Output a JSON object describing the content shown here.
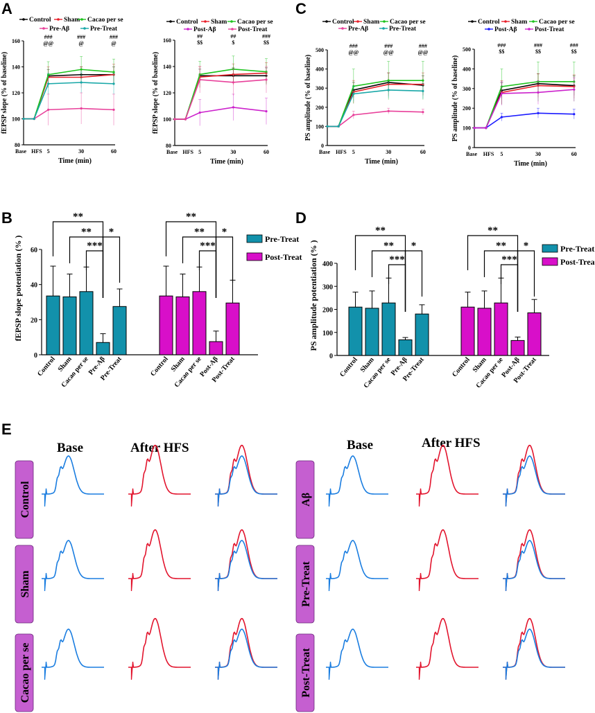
{
  "panels": {
    "a": "A",
    "b": "B",
    "c": "C",
    "d": "D",
    "e": "E"
  },
  "colors": {
    "control": "#000000",
    "sham": "#e8202a",
    "cacao": "#1ec31e",
    "abeta_pre": "#e8409a",
    "treat_pre": "#17a7a7",
    "abeta_post": "#1a1aff",
    "treat_post": "#cc22cc",
    "bar_pre": "#1291ab",
    "bar_post": "#d80fc9",
    "trace_base": "#1a7de0",
    "trace_hfs": "#e2142d",
    "row_label_bg": "#c55fd0"
  },
  "chart_data": [
    {
      "id": "A1",
      "type": "line",
      "xlabel": "Time (min)",
      "ylabel": "fEPSP slope (% of baseline)",
      "categories": [
        "Base",
        "HFS",
        "5",
        "30",
        "60"
      ],
      "ylim": [
        80,
        160
      ],
      "yticks": [
        80,
        100,
        120,
        140,
        160
      ],
      "legend": [
        "Control",
        "Sham",
        "Cacao per se",
        "Pre-Aβ",
        "Pre-Treat"
      ],
      "series": [
        {
          "name": "Control",
          "color_key": "control",
          "values": [
            100,
            100,
            133,
            134,
            134
          ],
          "err": [
            0,
            0,
            5,
            6,
            6
          ]
        },
        {
          "name": "Sham",
          "color_key": "sham",
          "values": [
            100,
            100,
            132,
            132,
            134
          ],
          "err": [
            0,
            0,
            8,
            8,
            8
          ]
        },
        {
          "name": "Cacao per se",
          "color_key": "cacao",
          "values": [
            100,
            100,
            134,
            138,
            136
          ],
          "err": [
            0,
            0,
            10,
            10,
            10
          ]
        },
        {
          "name": "Pre-Aβ",
          "color_key": "abeta_pre",
          "values": [
            100,
            100,
            107,
            108,
            107
          ],
          "err": [
            0,
            0,
            12,
            12,
            12
          ]
        },
        {
          "name": "Pre-Treat",
          "color_key": "treat_pre",
          "values": [
            100,
            100,
            127,
            128,
            127
          ],
          "err": [
            0,
            0,
            8,
            8,
            8
          ]
        }
      ],
      "annotations": [
        {
          "x": "5",
          "lines": [
            "###",
            "@@"
          ]
        },
        {
          "x": "30",
          "lines": [
            "###",
            "@"
          ]
        },
        {
          "x": "60",
          "lines": [
            "###",
            "@"
          ]
        }
      ]
    },
    {
      "id": "A2",
      "type": "line",
      "xlabel": "Time (min)",
      "ylabel": "fEPSP slope (% of baseline)",
      "categories": [
        "Base",
        "HFS",
        "5",
        "30",
        "60"
      ],
      "ylim": [
        80,
        160
      ],
      "yticks": [
        80,
        100,
        120,
        140,
        160
      ],
      "legend": [
        "Control",
        "Sham",
        "Cacao per se",
        "Post-Aβ",
        "Post-Treat"
      ],
      "series": [
        {
          "name": "Control",
          "color_key": "control",
          "values": [
            100,
            100,
            133,
            133,
            133
          ],
          "err": [
            0,
            0,
            5,
            6,
            6
          ]
        },
        {
          "name": "Sham",
          "color_key": "sham",
          "values": [
            100,
            100,
            132,
            134,
            135
          ],
          "err": [
            0,
            0,
            8,
            8,
            8
          ]
        },
        {
          "name": "Cacao per se",
          "color_key": "cacao",
          "values": [
            100,
            100,
            134,
            138,
            136
          ],
          "err": [
            0,
            0,
            10,
            10,
            10
          ]
        },
        {
          "name": "Post-Aβ",
          "color_key": "treat_post",
          "values": [
            100,
            100,
            105,
            109,
            106
          ],
          "err": [
            0,
            0,
            10,
            10,
            10
          ]
        },
        {
          "name": "Post-Treat",
          "color_key": "abeta_pre",
          "values": [
            100,
            100,
            130,
            128,
            130
          ],
          "err": [
            0,
            0,
            10,
            10,
            10
          ]
        }
      ],
      "annotations": [
        {
          "x": "5",
          "lines": [
            "##",
            "$$"
          ]
        },
        {
          "x": "30",
          "lines": [
            "##",
            "$"
          ]
        },
        {
          "x": "60",
          "lines": [
            "###",
            "$$"
          ]
        }
      ]
    },
    {
      "id": "C1",
      "type": "line",
      "xlabel": "Time (min)",
      "ylabel": "PS amplitude (% of baseline)",
      "categories": [
        "Base",
        "HFS",
        "5",
        "30",
        "60"
      ],
      "ylim": [
        0,
        500
      ],
      "yticks": [
        0,
        100,
        200,
        300,
        400,
        500
      ],
      "legend": [
        "Control",
        "Sham",
        "Cacao per se",
        "Pre-Aβ",
        "Pre-Treat"
      ],
      "series": [
        {
          "name": "Control",
          "color_key": "control",
          "values": [
            100,
            100,
            290,
            330,
            315
          ],
          "err": [
            0,
            0,
            40,
            50,
            50
          ]
        },
        {
          "name": "Sham",
          "color_key": "sham",
          "values": [
            100,
            100,
            280,
            320,
            320
          ],
          "err": [
            0,
            0,
            60,
            60,
            60
          ]
        },
        {
          "name": "Cacao per se",
          "color_key": "cacao",
          "values": [
            100,
            100,
            310,
            340,
            340
          ],
          "err": [
            0,
            0,
            90,
            100,
            100
          ]
        },
        {
          "name": "Pre-Aβ",
          "color_key": "abeta_pre",
          "values": [
            100,
            100,
            160,
            180,
            175
          ],
          "err": [
            0,
            0,
            20,
            15,
            15
          ]
        },
        {
          "name": "Pre-Treat",
          "color_key": "treat_pre",
          "values": [
            100,
            100,
            270,
            290,
            285
          ],
          "err": [
            0,
            0,
            40,
            40,
            40
          ]
        }
      ],
      "annotations": [
        {
          "x": "5",
          "lines": [
            "###",
            "@@"
          ]
        },
        {
          "x": "30",
          "lines": [
            "###",
            "@@"
          ]
        },
        {
          "x": "60",
          "lines": [
            "###",
            "@@"
          ]
        }
      ]
    },
    {
      "id": "C2",
      "type": "line",
      "xlabel": "Time (min)",
      "ylabel": "PS amplitude (% of baseline)",
      "categories": [
        "Base",
        "HFS",
        "5",
        "30",
        "60"
      ],
      "ylim": [
        0,
        500
      ],
      "yticks": [
        0,
        100,
        200,
        300,
        400,
        500
      ],
      "legend": [
        "Control",
        "Sham",
        "Cacao per se",
        "Post-Aβ",
        "Post-Treat"
      ],
      "series": [
        {
          "name": "Control",
          "color_key": "control",
          "values": [
            100,
            100,
            290,
            325,
            315
          ],
          "err": [
            0,
            0,
            40,
            50,
            50
          ]
        },
        {
          "name": "Sham",
          "color_key": "sham",
          "values": [
            100,
            100,
            280,
            315,
            310
          ],
          "err": [
            0,
            0,
            60,
            60,
            60
          ]
        },
        {
          "name": "Cacao per se",
          "color_key": "cacao",
          "values": [
            100,
            100,
            310,
            335,
            335
          ],
          "err": [
            0,
            0,
            90,
            100,
            100
          ]
        },
        {
          "name": "Post-Aβ",
          "color_key": "abeta_post",
          "values": [
            100,
            100,
            155,
            175,
            170
          ],
          "err": [
            0,
            0,
            20,
            25,
            25
          ]
        },
        {
          "name": "Post-Treat",
          "color_key": "treat_post",
          "values": [
            100,
            100,
            275,
            280,
            295
          ],
          "err": [
            0,
            0,
            60,
            60,
            60
          ]
        }
      ],
      "annotations": [
        {
          "x": "5",
          "lines": [
            "###",
            "$$"
          ]
        },
        {
          "x": "30",
          "lines": [
            "###",
            "$$"
          ]
        },
        {
          "x": "60",
          "lines": [
            "###",
            "$$"
          ]
        }
      ]
    },
    {
      "id": "B",
      "type": "bar",
      "ylabel": "fEPSP slope potentiation (% )",
      "ylim": [
        0,
        60
      ],
      "yticks": [
        0,
        20,
        40,
        60
      ],
      "legend": [
        "Pre-Treat",
        "Post-Treat"
      ],
      "groups": [
        {
          "name": "Pre-Treat",
          "color_key": "bar_pre",
          "categories": [
            "Control",
            "Sham",
            "Cacao per se",
            "Pre-Aβ",
            "Pre-Treat"
          ],
          "values": [
            33.5,
            33,
            36,
            7,
            27.5
          ],
          "err": [
            17,
            13,
            14,
            5,
            10
          ]
        },
        {
          "name": "Post-Treat",
          "color_key": "bar_post",
          "categories": [
            "Control",
            "Sham",
            "Cacao per se",
            "Post-Aβ",
            "Post-Treat"
          ],
          "values": [
            33.5,
            33,
            36,
            7.5,
            29.5
          ],
          "err": [
            17,
            13,
            14,
            6,
            13
          ]
        }
      ],
      "significance": [
        "**",
        "**",
        "***",
        "*"
      ]
    },
    {
      "id": "D",
      "type": "bar",
      "ylabel": "PS amplitude potentiation (% )",
      "ylim": [
        0,
        400
      ],
      "yticks": [
        0,
        100,
        200,
        300,
        400
      ],
      "legend": [
        "Pre-Treat",
        "Post-Treat"
      ],
      "groups": [
        {
          "name": "Pre-Treat",
          "color_key": "bar_pre",
          "categories": [
            "Control",
            "Sham",
            "Cacao per se",
            "Pre-Aβ",
            "Pre-Treat"
          ],
          "values": [
            210,
            205,
            228,
            68,
            180
          ],
          "err": [
            65,
            75,
            108,
            10,
            40
          ]
        },
        {
          "name": "Post-Treat",
          "color_key": "bar_post",
          "categories": [
            "Control",
            "Sham",
            "Cacao per se",
            "Post-Aβ",
            "Post-Treat"
          ],
          "values": [
            210,
            205,
            228,
            65,
            185
          ],
          "err": [
            65,
            75,
            108,
            15,
            58
          ]
        }
      ],
      "significance": [
        "**",
        "**",
        "***",
        "*"
      ]
    }
  ],
  "traces": {
    "headers": [
      "Base",
      "After HFS",
      "Base",
      "After HFS"
    ],
    "left_rows": [
      "Control",
      "Sham",
      "Cacao per se"
    ],
    "right_rows": [
      "Aβ",
      "Pre-Treat",
      "Post-Treat"
    ]
  }
}
